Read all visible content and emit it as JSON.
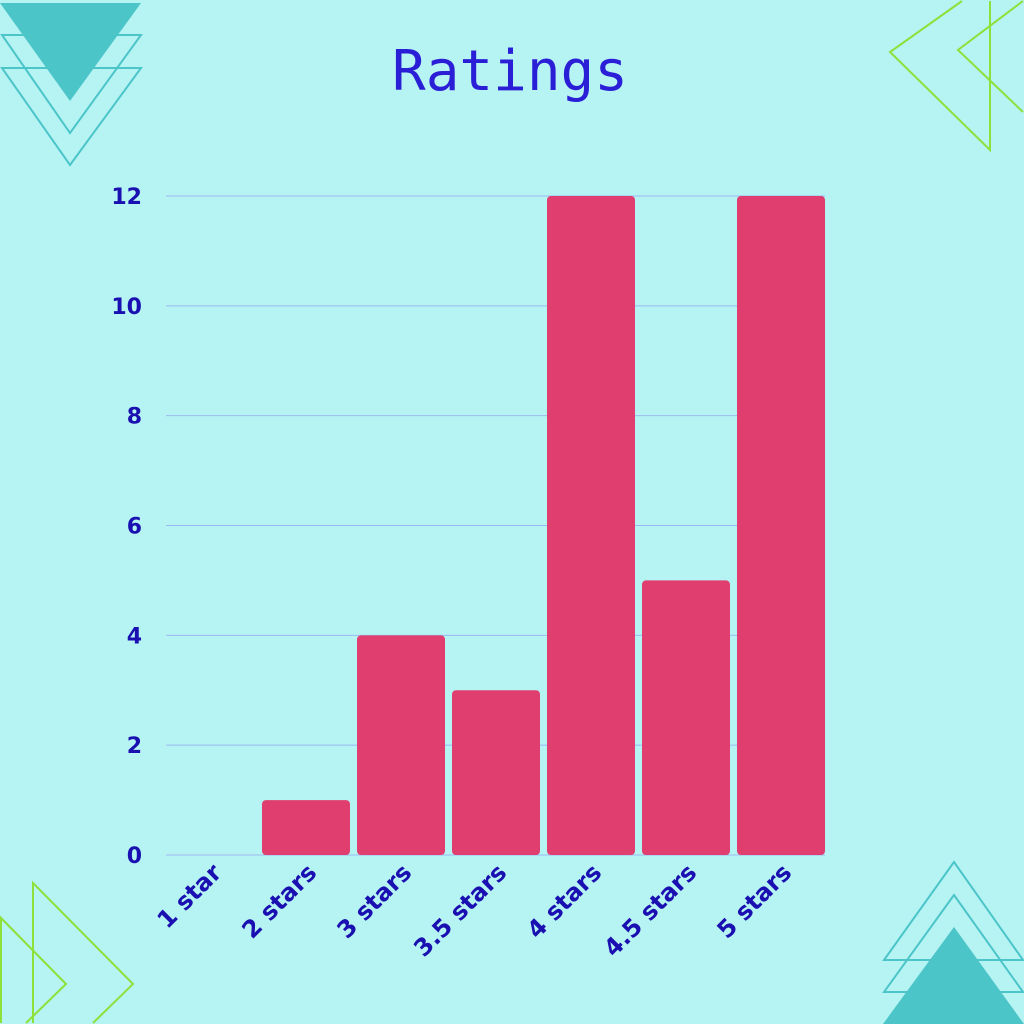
{
  "chart_data": {
    "type": "bar",
    "title": "Ratings",
    "xlabel": "",
    "ylabel": "",
    "categories": [
      "1 star",
      "2 stars",
      "3 stars",
      "3.5 stars",
      "4 stars",
      "4.5 stars",
      "5 stars"
    ],
    "values": [
      0,
      1,
      4,
      3,
      12,
      5,
      12
    ],
    "ylim": [
      0,
      12
    ],
    "yticks": [
      "0",
      "2",
      "4",
      "6",
      "8",
      "10",
      "12"
    ],
    "grid": true,
    "legend": "none"
  },
  "colors": {
    "background": "#b6f3f3",
    "bar": "#e03e6e",
    "text": "#1a0fb0",
    "title": "#2a1fd6",
    "grid": "#9db8f0",
    "teal": "#4cc5c9",
    "green": "#8ee03a"
  }
}
